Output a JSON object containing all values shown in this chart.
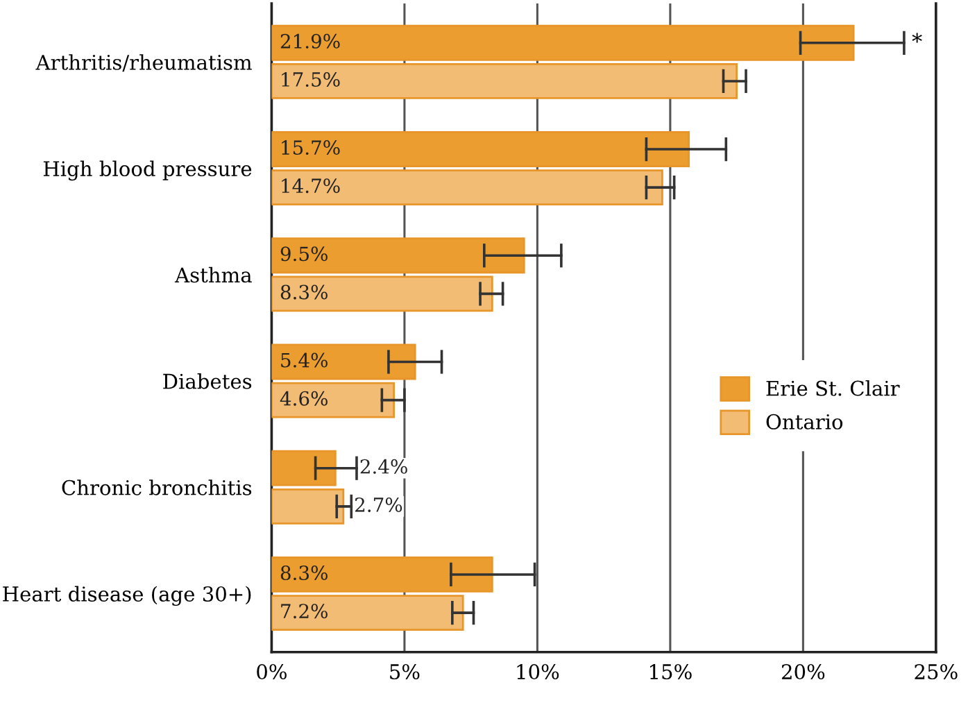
{
  "chart_data": {
    "type": "bar",
    "orientation": "horizontal",
    "categories": [
      "Arthritis/rheumatism",
      "High blood pressure",
      "Asthma",
      "Diabetes",
      "Chronic bronchitis",
      "Heart disease (age 30+)"
    ],
    "series": [
      {
        "name": "Erie St. Clair",
        "color": "#eb9d30",
        "values": [
          21.9,
          15.7,
          9.5,
          5.4,
          2.4,
          8.3
        ],
        "errors": [
          [
            19.9,
            23.8
          ],
          [
            14.1,
            17.1
          ],
          [
            8.0,
            10.9
          ],
          [
            4.4,
            6.4
          ],
          [
            1.65,
            3.2
          ],
          [
            6.75,
            9.9
          ]
        ],
        "value_labels": [
          "21.9%",
          "15.7%",
          "9.5%",
          "5.4%",
          "2.4%",
          "8.3%"
        ]
      },
      {
        "name": "Ontario",
        "color": "#f3bc75",
        "values": [
          17.5,
          14.7,
          8.3,
          4.6,
          2.7,
          7.2
        ],
        "errors": [
          [
            17.0,
            17.85
          ],
          [
            14.1,
            15.15
          ],
          [
            7.85,
            8.7
          ],
          [
            4.15,
            5.0
          ],
          [
            2.45,
            3.0
          ],
          [
            6.8,
            7.6
          ]
        ],
        "value_labels": [
          "17.5%",
          "14.7%",
          "8.3%",
          "4.6%",
          "2.7%",
          "7.2%"
        ]
      }
    ],
    "xlim": [
      0,
      25
    ],
    "xticks": [
      {
        "value": 0,
        "label": "0%"
      },
      {
        "value": 5,
        "label": "5%"
      },
      {
        "value": 10,
        "label": "10%"
      },
      {
        "value": 15,
        "label": "15%"
      },
      {
        "value": 20,
        "label": "20%"
      },
      {
        "value": 25,
        "label": "25%"
      }
    ],
    "annotations": [
      "*"
    ],
    "grid": "x",
    "legend": "right"
  }
}
